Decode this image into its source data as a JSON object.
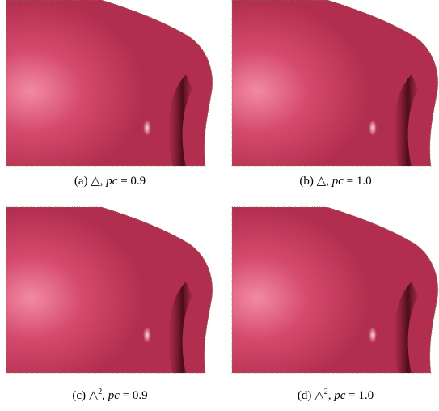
{
  "figure": {
    "panels": [
      {
        "caption": [
          {
            "text": "(a) △"
          },
          {
            "text": ", "
          },
          {
            "text": "pc",
            "style": "italic"
          },
          {
            "text": " = 0.9"
          }
        ]
      },
      {
        "caption": [
          {
            "text": "(b) △"
          },
          {
            "text": ", "
          },
          {
            "text": "pc",
            "style": "italic"
          },
          {
            "text": " = 1.0"
          }
        ]
      },
      {
        "caption": [
          {
            "text": "(c) △"
          },
          {
            "text": "2",
            "style": "sup"
          },
          {
            "text": ", "
          },
          {
            "text": "pc",
            "style": "italic"
          },
          {
            "text": " = 0.9"
          }
        ]
      },
      {
        "caption": [
          {
            "text": "(d) △"
          },
          {
            "text": "2",
            "style": "sup"
          },
          {
            "text": ", "
          },
          {
            "text": "pc",
            "style": "italic"
          },
          {
            "text": " = 1.0"
          }
        ]
      }
    ]
  }
}
